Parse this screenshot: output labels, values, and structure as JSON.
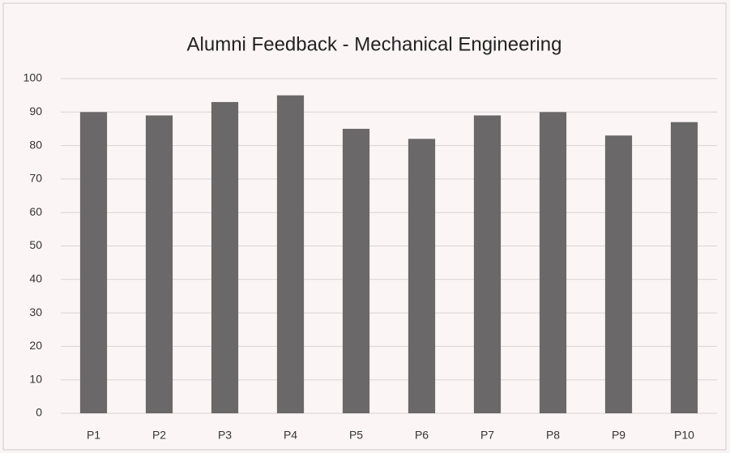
{
  "chart_data": {
    "type": "bar",
    "title": "Alumni Feedback - Mechanical Engineering",
    "categories": [
      "P1",
      "P2",
      "P3",
      "P4",
      "P5",
      "P6",
      "P7",
      "P8",
      "P9",
      "P10"
    ],
    "values": [
      90,
      89,
      93,
      95,
      85,
      82,
      89,
      90,
      83,
      87
    ],
    "color": "#6b6869",
    "ylim": [
      0,
      100
    ],
    "yticks": [
      0,
      10,
      20,
      30,
      40,
      50,
      60,
      70,
      80,
      90,
      100
    ],
    "grid": true
  }
}
